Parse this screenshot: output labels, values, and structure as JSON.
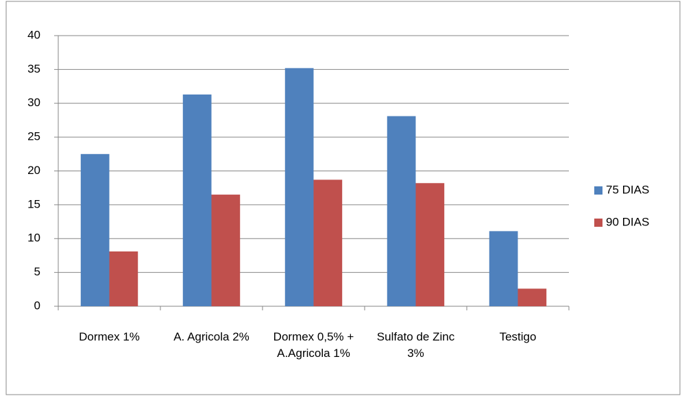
{
  "chart_data": {
    "type": "bar",
    "categories": [
      "Dormex 1%",
      "A. Agricola 2%",
      "Dormex 0,5% + A.Agricola 1%",
      "Sulfato de Zinc 3%",
      "Testigo"
    ],
    "series": [
      {
        "name": "75 DIAS",
        "color": "#4f81bd",
        "values": [
          22.5,
          31.3,
          35.2,
          28.1,
          11.1
        ]
      },
      {
        "name": "90 DIAS",
        "color": "#c0504d",
        "values": [
          8.1,
          16.5,
          18.7,
          18.2,
          2.6
        ]
      }
    ],
    "ylim": [
      0,
      40
    ],
    "yticks": [
      0,
      5,
      10,
      15,
      20,
      25,
      30,
      35,
      40
    ],
    "grid": true,
    "legend": "right"
  }
}
